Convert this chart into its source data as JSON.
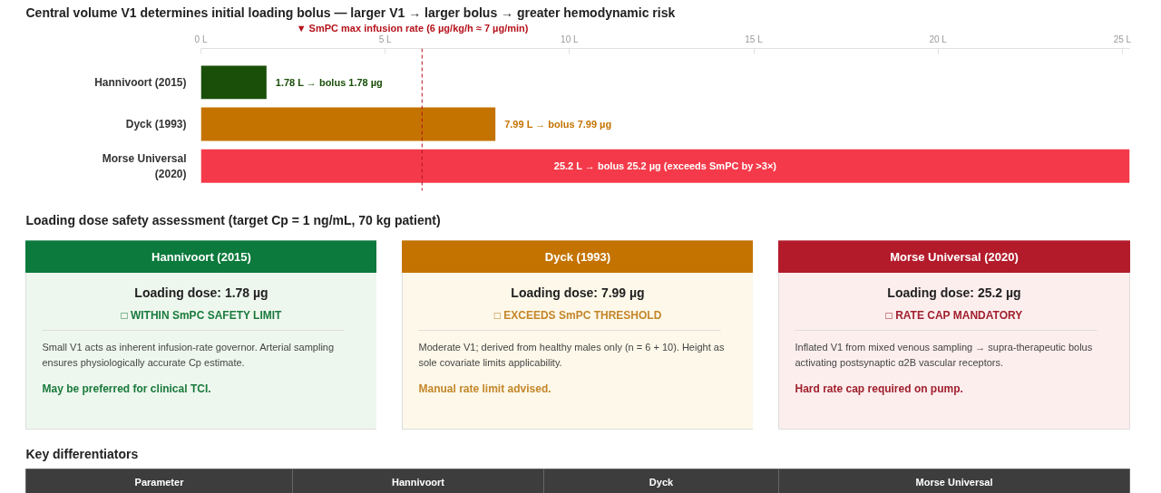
{
  "chart_data": [
    {
      "type": "bar",
      "orientation": "horizontal",
      "title": "Central volume V1 determines initial loading bolus — larger V1 → larger bolus → greater hemodynamic risk",
      "categories": [
        "Hannivoort (2015)",
        "Dyck (1993)",
        "Morse Universal (2020)"
      ],
      "values": [
        1.78,
        7.99,
        25.2
      ],
      "colors": [
        "#1a4f0a",
        "#c47300",
        "#f43a4a"
      ],
      "value_labels": [
        "1.78 L → bolus 1.78 µg",
        "7.99 L → bolus 7.99 µg",
        "25.2 L → bolus 25.2 µg (exceeds SmPC by >3×)"
      ],
      "xlim": [
        0,
        25.2
      ],
      "xticks": [
        {
          "value": 0,
          "label": "0 L"
        },
        {
          "value": 5,
          "label": "5 L"
        },
        {
          "value": 10,
          "label": "10 L"
        },
        {
          "value": 15,
          "label": "15 L"
        },
        {
          "value": 20,
          "label": "20 L"
        },
        {
          "value": 25,
          "label": "25 L"
        }
      ],
      "ref_lines": [
        {
          "axis": "x",
          "value": 6,
          "label": "▼ SmPC max infusion rate (6 µg/kg/h ≈ 7 µg/min)",
          "color": "#b5121b",
          "line_style": "dashed"
        }
      ],
      "grid": false,
      "legend": false
    },
    {
      "type": "other",
      "title": "Loading dose safety assessment (target Cp = 1 ng/mL, 70 kg patient)"
    },
    {
      "type": "other",
      "title": "Hannivoort (2015)",
      "colors": [
        "#0b7a3c",
        "#eef7ee",
        "#1a7a3c"
      ],
      "annotations": [
        "Loading dose: 1.78 µg",
        "□ WITHIN SmPC SAFETY LIMIT",
        "Small V1 acts as inherent infusion-rate governor. Arterial sampling ensures physiologically accurate Cp estimate.",
        "May be preferred for clinical TCI."
      ]
    },
    {
      "type": "other",
      "title": "Dyck (1993)",
      "colors": [
        "#c47300",
        "#fdf8e9",
        "#c4862a"
      ],
      "annotations": [
        "Loading dose: 7.99 µg",
        "□ EXCEEDS SmPC THRESHOLD",
        "Moderate V1; derived from healthy males only (n = 6 + 10). Height as sole covariate limits applicability.",
        "Manual rate limit advised."
      ]
    },
    {
      "type": "other",
      "title": "Morse Universal (2020)",
      "colors": [
        "#b31b2b",
        "#fdeeee",
        "#a0202e"
      ],
      "annotations": [
        "Loading dose: 25.2 µg",
        "□ RATE CAP MANDATORY",
        "Inflated V1 from mixed venous sampling → supra-therapeutic bolus activating postsynaptic α2B vascular receptors.",
        "Hard rate cap required on pump."
      ]
    },
    {
      "type": "other",
      "title": "Key differentiators",
      "categories": [
        "Parameter",
        "Hannivoort",
        "Dyck",
        "Morse Universal"
      ],
      "colors": [
        "#3d3d3d"
      ]
    }
  ]
}
